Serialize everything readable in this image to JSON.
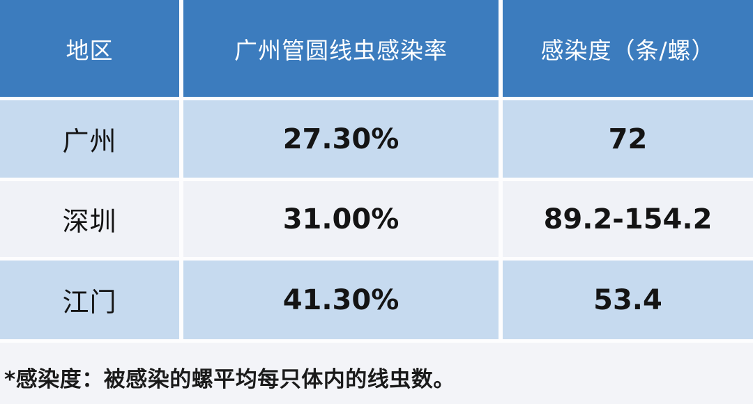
{
  "chart_data": {
    "type": "table",
    "columns": [
      "地区",
      "广州管圆线虫感染率",
      "感染度（条/螺）"
    ],
    "rows": [
      [
        "广州",
        "27.30%",
        "72"
      ],
      [
        "深圳",
        "31.00%",
        "89.2-154.2"
      ],
      [
        "江门",
        "41.30%",
        "53.4"
      ]
    ],
    "footnote": "*感染度：被感染的螺平均每只体内的线虫数。",
    "layout": {
      "header_position": "top",
      "alternating_rows": true,
      "footnote_position": "bottom"
    }
  },
  "colors": {
    "header_bg": "#3C7CBE",
    "header_text": "#FFFFFF",
    "row_blue_bg": "#C6DAEF",
    "row_white_bg": "#F0F2F7",
    "footer_bg": "#F3F4F8",
    "divider": "#FDFDFE",
    "body_text": "#141414"
  }
}
